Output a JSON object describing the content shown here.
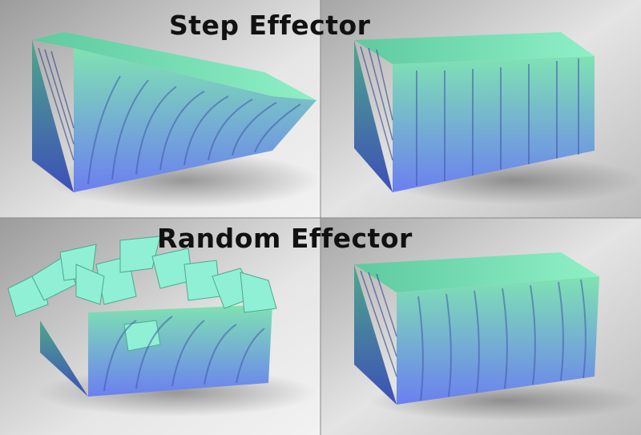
{
  "labels": {
    "step": "Step Effector",
    "random": "Random Effector"
  },
  "panels": [
    {
      "id": "step-curved",
      "description_icon": "curved-fins-block"
    },
    {
      "id": "step-straight",
      "description_icon": "straight-fins-block"
    },
    {
      "id": "random-scattered",
      "description_icon": "scattered-fins-block"
    },
    {
      "id": "random-wavy",
      "description_icon": "wavy-fins-block"
    }
  ],
  "colors": {
    "background_light": "#ececec",
    "background_dark": "#9a9a9a",
    "fin_top": "#7fe0b0",
    "fin_bottom": "#6a7ef0",
    "side_shadow": "#3a4a8a"
  }
}
